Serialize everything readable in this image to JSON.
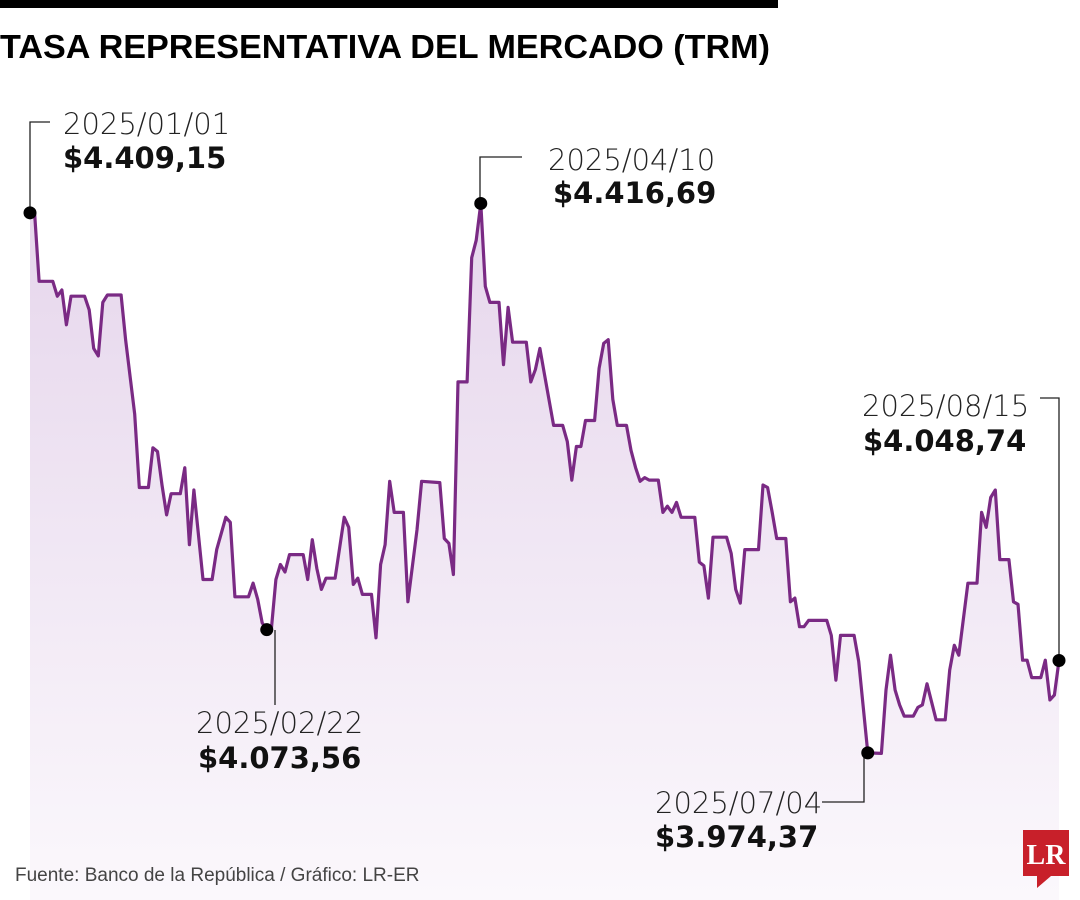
{
  "chart_data": {
    "type": "area",
    "title": "TASA REPRESENTATIVA DEL MERCADO (TRM)",
    "xlabel": "",
    "ylabel": "",
    "xlim": [
      "2025/01/01",
      "2025/08/15"
    ],
    "ylim": [
      3864,
      4504
    ],
    "grid": false,
    "line_color": "#7a2a84",
    "fill_color": "#eadbef",
    "series": [
      {
        "x": [
          "2025/01/01",
          "2025/01/02",
          "2025/01/03",
          "2025/01/06",
          "2025/01/07",
          "2025/01/08",
          "2025/01/09",
          "2025/01/10",
          "2025/01/13",
          "2025/01/14",
          "2025/01/15",
          "2025/01/16",
          "2025/01/17",
          "2025/01/18",
          "2025/01/21",
          "2025/01/22",
          "2025/01/24",
          "2025/01/25",
          "2025/01/27",
          "2025/01/28",
          "2025/01/29",
          "2025/01/30",
          "2025/01/31",
          "2025/02/01",
          "2025/02/03",
          "2025/02/04",
          "2025/02/05",
          "2025/02/06",
          "2025/02/08",
          "2025/02/10",
          "2025/02/11",
          "2025/02/13",
          "2025/02/14",
          "2025/02/15",
          "2025/02/18",
          "2025/02/19",
          "2025/02/20",
          "2025/02/21",
          "2025/02/22",
          "2025/02/23",
          "2025/02/24",
          "2025/02/25",
          "2025/02/26",
          "2025/02/27",
          "2025/03/02",
          "2025/03/03",
          "2025/03/04",
          "2025/03/05",
          "2025/03/06",
          "2025/03/07",
          "2025/03/09",
          "2025/03/11",
          "2025/03/12",
          "2025/03/13",
          "2025/03/14",
          "2025/03/15",
          "2025/03/17",
          "2025/03/18",
          "2025/03/19",
          "2025/03/20",
          "2025/03/21",
          "2025/03/22",
          "2025/03/24",
          "2025/03/25",
          "2025/03/27",
          "2025/03/28",
          "2025/04/01",
          "2025/04/02",
          "2025/04/03",
          "2025/04/04",
          "2025/04/05",
          "2025/04/07",
          "2025/04/08",
          "2025/04/09",
          "2025/04/10",
          "2025/04/11",
          "2025/04/12",
          "2025/04/14",
          "2025/04/15",
          "2025/04/16",
          "2025/04/17",
          "2025/04/20",
          "2025/04/21",
          "2025/04/22",
          "2025/04/23",
          "2025/04/24",
          "2025/04/26",
          "2025/04/28",
          "2025/04/29",
          "2025/04/30",
          "2025/05/01",
          "2025/05/02",
          "2025/05/03",
          "2025/05/05",
          "2025/05/06",
          "2025/05/07",
          "2025/05/08",
          "2025/05/09",
          "2025/05/10",
          "2025/05/12",
          "2025/05/13",
          "2025/05/14",
          "2025/05/15",
          "2025/05/16",
          "2025/05/17",
          "2025/05/19",
          "2025/05/20",
          "2025/05/21",
          "2025/05/22",
          "2025/05/23",
          "2025/05/24",
          "2025/05/27",
          "2025/05/28",
          "2025/05/29",
          "2025/05/30",
          "2025/05/31",
          "2025/06/03",
          "2025/06/04",
          "2025/06/05",
          "2025/06/06",
          "2025/06/07",
          "2025/06/10",
          "2025/06/11",
          "2025/06/12",
          "2025/06/13",
          "2025/06/14",
          "2025/06/16",
          "2025/06/17",
          "2025/06/18",
          "2025/06/19",
          "2025/06/20",
          "2025/06/21",
          "2025/06/25",
          "2025/06/26",
          "2025/06/27",
          "2025/06/28",
          "2025/07/01",
          "2025/07/02",
          "2025/07/04",
          "2025/07/07",
          "2025/07/08",
          "2025/07/09",
          "2025/07/10",
          "2025/07/11",
          "2025/07/12",
          "2025/07/14",
          "2025/07/15",
          "2025/07/16",
          "2025/07/17",
          "2025/07/19",
          "2025/07/21",
          "2025/07/22",
          "2025/07/23",
          "2025/07/24",
          "2025/07/26",
          "2025/07/28",
          "2025/07/29",
          "2025/07/30",
          "2025/07/31",
          "2025/08/01",
          "2025/08/02",
          "2025/08/04",
          "2025/08/05",
          "2025/08/06",
          "2025/08/07",
          "2025/08/08",
          "2025/08/09",
          "2025/08/11",
          "2025/08/12",
          "2025/08/13",
          "2025/08/14",
          "2025/08/15"
        ],
        "values": [
          4409.15,
          4409,
          4354,
          4354,
          4342,
          4347,
          4319,
          4342,
          4342,
          4331,
          4300,
          4294,
          4337,
          4343,
          4343,
          4307,
          4247,
          4188,
          4188,
          4220,
          4217,
          4190,
          4166,
          4183,
          4183,
          4204,
          4142,
          4186,
          4114,
          4114,
          4138,
          4164,
          4160,
          4100,
          4100,
          4111,
          4098,
          4079,
          4073.56,
          4073.56,
          4114,
          4126,
          4120,
          4134,
          4134,
          4114,
          4146,
          4123,
          4106,
          4115,
          4115,
          4164,
          4156,
          4110,
          4115,
          4102,
          4102,
          4067,
          4126,
          4142,
          4193,
          4168,
          4168,
          4096,
          4154,
          4193,
          4192,
          4147,
          4143,
          4118,
          4273,
          4273,
          4373,
          4387,
          4416.69,
          4350,
          4337,
          4337,
          4287,
          4333,
          4305,
          4305,
          4273,
          4283,
          4300,
          4279,
          4238,
          4238,
          4225,
          4194,
          4221,
          4221,
          4242,
          4242,
          4284,
          4304,
          4307,
          4259,
          4238,
          4238,
          4218,
          4204,
          4193,
          4196,
          4194,
          4194,
          4168,
          4173,
          4168,
          4176,
          4164,
          4164,
          4128,
          4125,
          4099,
          4148,
          4148,
          4135,
          4106,
          4095,
          4138,
          4138,
          4190,
          4188,
          4168,
          4147,
          4147,
          4096,
          4099,
          4076,
          4076,
          4081,
          4081,
          4069,
          4033,
          4069,
          4069,
          4048,
          3974.37,
          3974,
          4025,
          4053,
          4025,
          4013,
          4004,
          4004,
          4011,
          4013,
          4030,
          4001,
          4001,
          4041,
          4061,
          4053,
          4111,
          4111,
          4168,
          4156,
          4180,
          4186,
          4130,
          4130,
          4096,
          4094,
          4049,
          4049,
          4035,
          4035,
          4049,
          4017,
          4021,
          4048.74
        ]
      }
    ],
    "annotations": [
      {
        "date": "2025/01/01",
        "value": "$4.409,15"
      },
      {
        "date": "2025/02/22",
        "value": "$4.073,56"
      },
      {
        "date": "2025/04/10",
        "value": "$4.416,69"
      },
      {
        "date": "2025/07/04",
        "value": "$3.974,37"
      },
      {
        "date": "2025/08/15",
        "value": "$4.048,74"
      }
    ]
  },
  "source": "Fuente: Banco de la República / Gráfico: LR-ER",
  "logo": {
    "text": "LR",
    "color": "#c8202a"
  }
}
